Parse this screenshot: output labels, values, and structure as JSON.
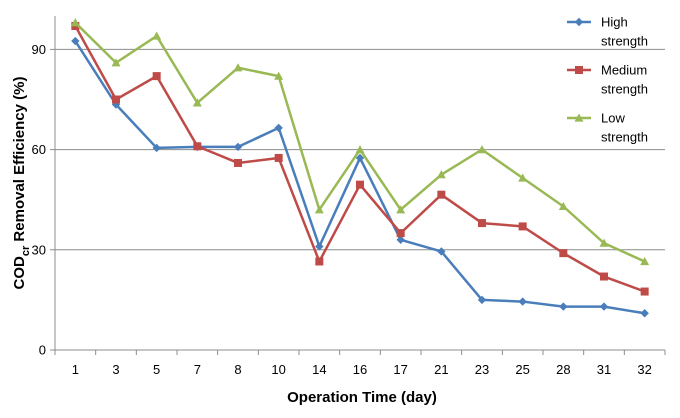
{
  "chart_data": {
    "type": "line",
    "categories": [
      "1",
      "3",
      "5",
      "7",
      "8",
      "10",
      "14",
      "16",
      "17",
      "21",
      "23",
      "25",
      "28",
      "31",
      "32"
    ],
    "series": [
      {
        "name": "High strength",
        "name_lines": [
          "High",
          "strength"
        ],
        "color": "#4a7ebb",
        "marker": "diamond",
        "values": [
          92.5,
          73.5,
          60.5,
          60.8,
          60.8,
          66.5,
          31,
          57.5,
          33,
          29.5,
          15,
          14.5,
          13,
          13,
          11
        ]
      },
      {
        "name": "Medium strength",
        "name_lines": [
          "Medium",
          "strength"
        ],
        "color": "#be4b48",
        "marker": "square",
        "values": [
          97,
          75,
          82,
          61,
          56,
          57.5,
          26.5,
          49.5,
          35,
          46.5,
          38,
          37,
          29,
          22,
          17.5
        ]
      },
      {
        "name": "Low strength",
        "name_lines": [
          "Low",
          "strength"
        ],
        "color": "#98b954",
        "marker": "triangle",
        "values": [
          98,
          86,
          94,
          74,
          84.5,
          82,
          42,
          60,
          42,
          52.5,
          60,
          51.5,
          43,
          32,
          26.5
        ]
      }
    ],
    "xlabel": "Operation Time (day)",
    "ylabel": {
      "main": "COD",
      "sub": "cr",
      "rest": " Removal Efficiency (%)"
    },
    "ylim": [
      0,
      100
    ],
    "yticks": [
      0,
      30,
      60,
      90
    ],
    "grid": true,
    "legend": "top-right"
  }
}
